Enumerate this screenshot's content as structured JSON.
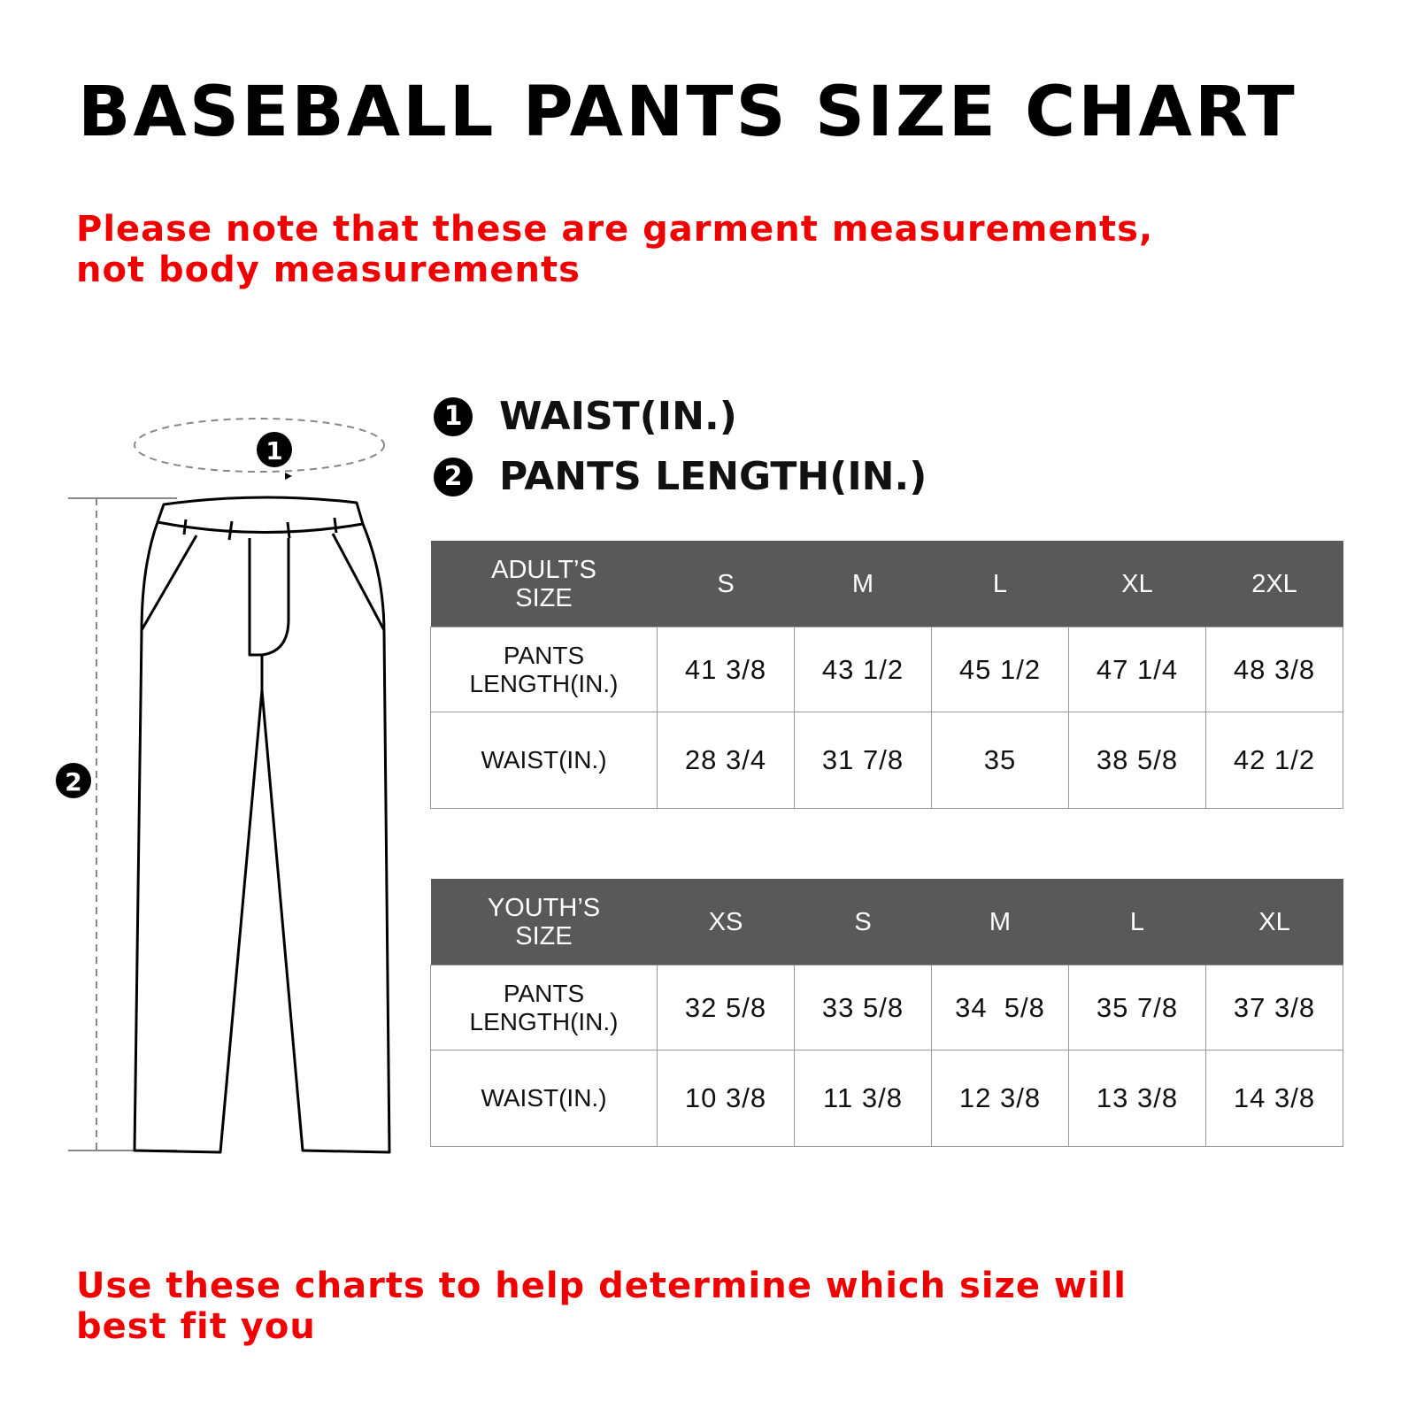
{
  "title": "BASEBALL PANTS SIZE CHART",
  "note_top": "Please note that these are garment measurements, not body measurements",
  "note_bottom": "Use these charts to help determine which size will best fit you",
  "legend": [
    {
      "num": "1",
      "label": "WAIST(IN.)"
    },
    {
      "num": "2",
      "label": "PANTS LENGTH(IN.)"
    }
  ],
  "diagram": {
    "marker_waist": "1",
    "marker_length": "2"
  },
  "colors": {
    "header_bg": "#595959",
    "note": "#f00000"
  },
  "adult_table": {
    "header_line1": "ADULT’S",
    "header_line2": "SIZE",
    "sizes": [
      "S",
      "M",
      "L",
      "XL",
      "2XL"
    ],
    "rows": [
      {
        "label_line1": "PANTS",
        "label_line2": "LENGTH(IN.)",
        "values": [
          "41 3/8",
          "43 1/2",
          "45 1/2",
          "47 1/4",
          "48 3/8"
        ]
      },
      {
        "label_line1": "WAIST(IN.)",
        "label_line2": "",
        "values": [
          "28 3/4",
          "31 7/8",
          "35",
          "38 5/8",
          "42 1/2"
        ]
      }
    ]
  },
  "youth_table": {
    "header_line1": "YOUTH’S",
    "header_line2": "SIZE",
    "sizes": [
      "XS",
      "S",
      "M",
      "L",
      "XL"
    ],
    "rows": [
      {
        "label_line1": "PANTS",
        "label_line2": "LENGTH(IN.)",
        "values": [
          "32 5/8",
          "33 5/8",
          "34  5/8",
          "35 7/8",
          "37 3/8"
        ]
      },
      {
        "label_line1": "WAIST(IN.)",
        "label_line2": "",
        "values": [
          "10 3/8",
          "11 3/8",
          "12 3/8",
          "13 3/8",
          "14 3/8"
        ]
      }
    ]
  }
}
